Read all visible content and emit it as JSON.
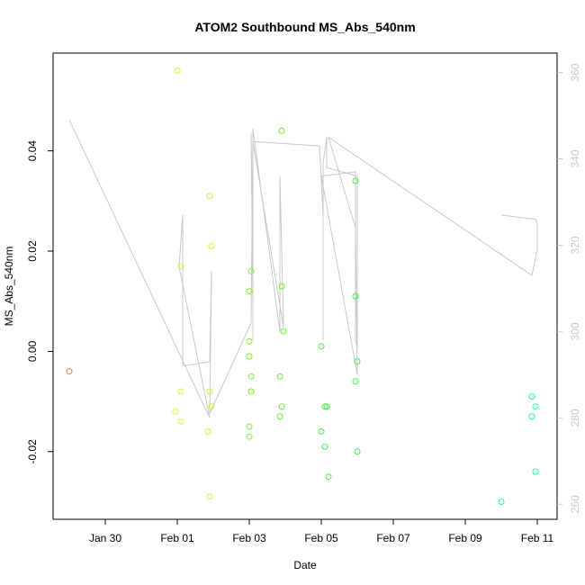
{
  "chart_data": {
    "type": "scatter",
    "title": "ATOM2 Southbound MS_Abs_540nm",
    "xlabel": "Date",
    "ylabel": "MS_Abs_540nm",
    "x_ticks": [
      "Jan 30",
      "Feb 01",
      "Feb 03",
      "Feb 05",
      "Feb 07",
      "Feb 09",
      "Feb 11"
    ],
    "x_tick_days": [
      30,
      32,
      34,
      36,
      38,
      40,
      42
    ],
    "xlim_days": [
      28.55,
      42.55
    ],
    "y_left": {
      "ticks": [
        -0.02,
        0.0,
        0.02,
        0.04
      ],
      "tick_labels": [
        "-0.02",
        "0.00",
        "0.02",
        "0.04"
      ],
      "ylim": [
        -0.0335,
        0.0595
      ]
    },
    "y_right": {
      "ticks": [
        260,
        280,
        300,
        320,
        340,
        360
      ],
      "tick_labels": [
        "260",
        "280",
        "300",
        "320",
        "340",
        "360"
      ],
      "ylim": [
        256.5,
        364.5
      ],
      "color": "#c8c8c8"
    },
    "grid": false,
    "legend": "none",
    "points": [
      {
        "x": 29.0,
        "y": -0.004,
        "color": "#f07828"
      },
      {
        "x": 32.0,
        "y": 0.056,
        "color": "#e6f028"
      },
      {
        "x": 31.95,
        "y": -0.012,
        "color": "#e6f028"
      },
      {
        "x": 32.1,
        "y": -0.008,
        "color": "#e6f028"
      },
      {
        "x": 32.1,
        "y": -0.014,
        "color": "#e6f028"
      },
      {
        "x": 32.1,
        "y": 0.017,
        "color": "#e6f028"
      },
      {
        "x": 32.9,
        "y": 0.031,
        "color": "#d4f028"
      },
      {
        "x": 32.95,
        "y": 0.021,
        "color": "#d4f028"
      },
      {
        "x": 32.9,
        "y": -0.008,
        "color": "#d4f028"
      },
      {
        "x": 32.95,
        "y": -0.011,
        "color": "#d4f028"
      },
      {
        "x": 32.85,
        "y": -0.016,
        "color": "#d4f028"
      },
      {
        "x": 32.9,
        "y": -0.029,
        "color": "#d4f028"
      },
      {
        "x": 34.05,
        "y": 0.016,
        "color": "#78f028"
      },
      {
        "x": 34.0,
        "y": 0.012,
        "color": "#78f028"
      },
      {
        "x": 34.0,
        "y": 0.002,
        "color": "#78f028"
      },
      {
        "x": 34.0,
        "y": -0.001,
        "color": "#78f028"
      },
      {
        "x": 34.05,
        "y": -0.005,
        "color": "#78f028"
      },
      {
        "x": 34.05,
        "y": -0.008,
        "color": "#78f028"
      },
      {
        "x": 34.0,
        "y": -0.015,
        "color": "#78f028"
      },
      {
        "x": 34.0,
        "y": -0.017,
        "color": "#78f028"
      },
      {
        "x": 34.9,
        "y": 0.044,
        "color": "#64f028"
      },
      {
        "x": 34.9,
        "y": 0.013,
        "color": "#64f028"
      },
      {
        "x": 34.95,
        "y": 0.004,
        "color": "#64f028"
      },
      {
        "x": 34.85,
        "y": -0.005,
        "color": "#64f028"
      },
      {
        "x": 34.9,
        "y": -0.011,
        "color": "#64f028"
      },
      {
        "x": 34.85,
        "y": -0.013,
        "color": "#64f028"
      },
      {
        "x": 36.0,
        "y": 0.001,
        "color": "#3cf03c"
      },
      {
        "x": 36.1,
        "y": -0.011,
        "color": "#3cf03c"
      },
      {
        "x": 36.15,
        "y": -0.011,
        "color": "#3cf03c"
      },
      {
        "x": 36.0,
        "y": -0.016,
        "color": "#3cf03c"
      },
      {
        "x": 36.1,
        "y": -0.019,
        "color": "#3cf03c"
      },
      {
        "x": 36.2,
        "y": -0.025,
        "color": "#3cf03c"
      },
      {
        "x": 36.95,
        "y": 0.034,
        "color": "#3cf050"
      },
      {
        "x": 36.95,
        "y": 0.011,
        "color": "#3cf050"
      },
      {
        "x": 37.0,
        "y": -0.002,
        "color": "#3cf050"
      },
      {
        "x": 36.95,
        "y": -0.006,
        "color": "#3cf050"
      },
      {
        "x": 37.0,
        "y": -0.02,
        "color": "#3cf050"
      },
      {
        "x": 41.0,
        "y": -0.03,
        "color": "#28f0b4"
      },
      {
        "x": 41.85,
        "y": -0.009,
        "color": "#28f0b4"
      },
      {
        "x": 41.95,
        "y": -0.011,
        "color": "#28f0b4"
      },
      {
        "x": 41.85,
        "y": -0.013,
        "color": "#28f0b4"
      },
      {
        "x": 41.95,
        "y": -0.024,
        "color": "#28f0b4"
      }
    ],
    "line_series": {
      "axis": "right",
      "color": "#c8c8c8",
      "x": [
        29.0,
        32.9,
        32.05,
        32.15,
        32.15,
        32.9,
        32.95,
        32.9,
        34.05,
        34.1,
        34.1,
        34.05,
        34.1,
        34.1,
        34.1,
        34.1,
        34.85,
        34.85,
        34.85,
        34.85,
        34.95,
        34.1,
        35.95,
        36.05,
        36.05,
        36.05,
        36.15,
        36.15,
        37.0,
        37.0,
        36.95,
        36.95,
        36.0,
        37.0,
        36.95,
        36.2,
        41.85,
        42.0,
        42.0,
        41.95,
        41.0
      ],
      "y": [
        349,
        280,
        315,
        327,
        292,
        293,
        314,
        281,
        302,
        344,
        307,
        346,
        316,
        334,
        298,
        347,
        300,
        334,
        336,
        336,
        301,
        344,
        343,
        327,
        298,
        339,
        345,
        338,
        336,
        296,
        298,
        337,
        336,
        290,
        324,
        345,
        313,
        319,
        325,
        326,
        327
      ]
    }
  }
}
